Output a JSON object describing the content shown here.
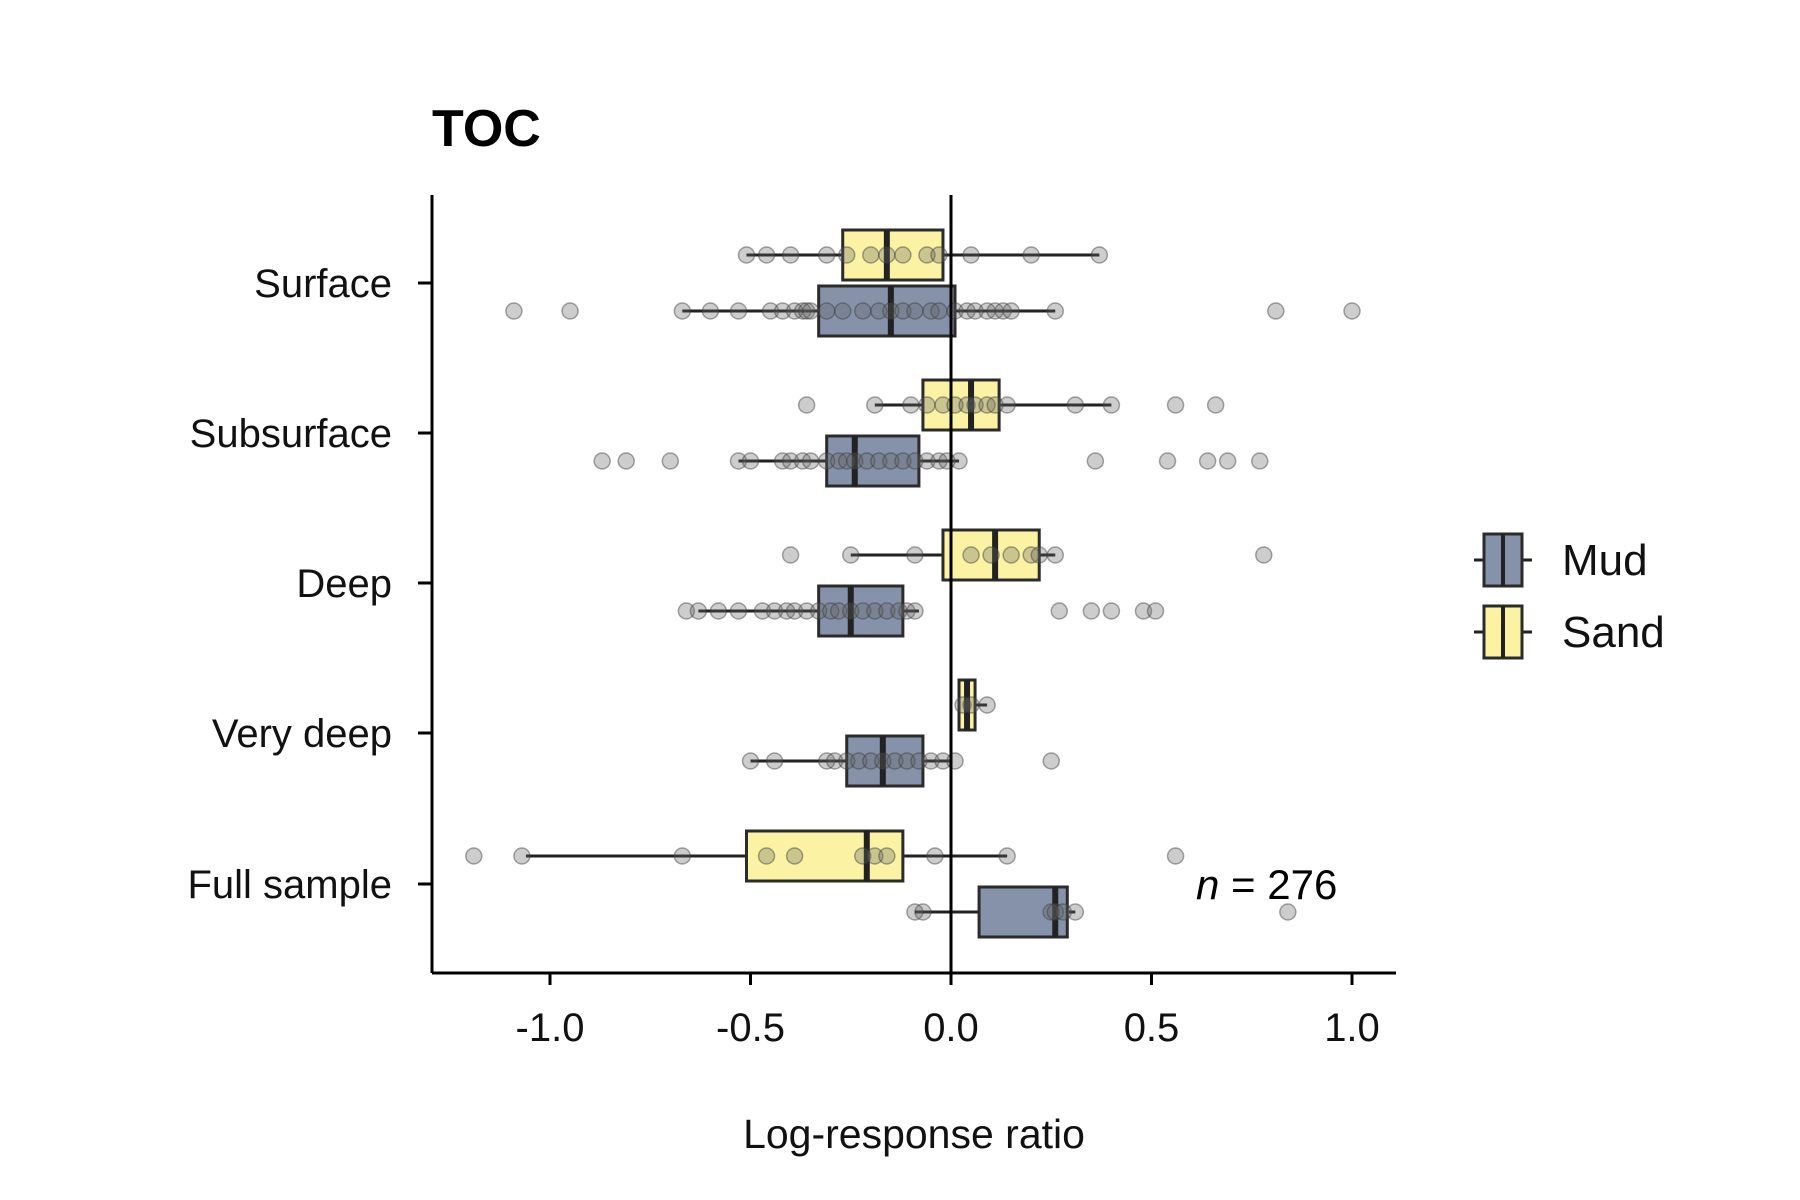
{
  "chart_data": {
    "type": "boxplot",
    "title": "TOC",
    "xlabel": "Log-response ratio",
    "ylabel": "",
    "xlim": [
      -1.3,
      1.11
    ],
    "xticks": [
      "-1.0",
      "-0.5",
      "0.0",
      "0.5",
      "1.0"
    ],
    "xtick_values": [
      -1.0,
      -0.5,
      0.0,
      0.5,
      1.0
    ],
    "categories": [
      "Surface",
      "Subsurface",
      "Deep",
      "Very deep",
      "Full sample"
    ],
    "reference_line_x": 0,
    "grid": false,
    "legend_position": "right",
    "annotation": {
      "italic": "n",
      "rest": " = 276"
    },
    "series": [
      {
        "name": "Mud",
        "color": "#8592AA",
        "boxes": [
          {
            "category": "Surface",
            "q1": -0.33,
            "median": -0.15,
            "q3": 0.01,
            "whisker_low": -0.67,
            "whisker_high": 0.26,
            "points": [
              -1.09,
              -0.95,
              -0.67,
              -0.6,
              -0.53,
              -0.45,
              -0.42,
              -0.39,
              -0.37,
              -0.36,
              -0.35,
              -0.31,
              -0.27,
              -0.22,
              -0.18,
              -0.15,
              -0.12,
              -0.09,
              -0.05,
              -0.03,
              0.01,
              0.04,
              0.06,
              0.09,
              0.11,
              0.13,
              0.15,
              0.26,
              0.81,
              1.0
            ]
          },
          {
            "category": "Subsurface",
            "q1": -0.31,
            "median": -0.24,
            "q3": -0.08,
            "whisker_low": -0.53,
            "whisker_high": 0.02,
            "points": [
              -0.87,
              -0.81,
              -0.7,
              -0.53,
              -0.5,
              -0.42,
              -0.4,
              -0.37,
              -0.35,
              -0.31,
              -0.28,
              -0.26,
              -0.24,
              -0.21,
              -0.18,
              -0.15,
              -0.12,
              -0.09,
              -0.06,
              -0.03,
              -0.01,
              0.02,
              0.36,
              0.54,
              0.64,
              0.69,
              0.77
            ]
          },
          {
            "category": "Deep",
            "q1": -0.33,
            "median": -0.25,
            "q3": -0.12,
            "whisker_low": -0.63,
            "whisker_high": -0.08,
            "points": [
              -0.66,
              -0.63,
              -0.58,
              -0.53,
              -0.47,
              -0.44,
              -0.41,
              -0.39,
              -0.36,
              -0.33,
              -0.3,
              -0.28,
              -0.25,
              -0.22,
              -0.19,
              -0.16,
              -0.13,
              -0.11,
              -0.09,
              0.27,
              0.35,
              0.4,
              0.48,
              0.51
            ]
          },
          {
            "category": "Very deep",
            "q1": -0.26,
            "median": -0.17,
            "q3": -0.07,
            "whisker_low": -0.5,
            "whisker_high": 0.0,
            "points": [
              -0.5,
              -0.44,
              -0.31,
              -0.29,
              -0.26,
              -0.23,
              -0.2,
              -0.17,
              -0.14,
              -0.11,
              -0.08,
              -0.05,
              -0.02,
              0.01,
              0.25
            ]
          },
          {
            "category": "Full sample",
            "q1": 0.07,
            "median": 0.26,
            "q3": 0.29,
            "whisker_low": -0.09,
            "whisker_high": 0.31,
            "points": [
              -0.09,
              -0.07,
              0.25,
              0.26,
              0.28,
              0.31,
              0.84
            ]
          }
        ]
      },
      {
        "name": "Sand",
        "color": "#FBF3A3",
        "boxes": [
          {
            "category": "Surface",
            "q1": -0.27,
            "median": -0.16,
            "q3": -0.02,
            "whisker_low": -0.51,
            "whisker_high": 0.37,
            "points": [
              -0.51,
              -0.46,
              -0.4,
              -0.31,
              -0.26,
              -0.2,
              -0.16,
              -0.12,
              -0.06,
              -0.03,
              0.05,
              0.2,
              0.37
            ]
          },
          {
            "category": "Subsurface",
            "q1": -0.07,
            "median": 0.05,
            "q3": 0.12,
            "whisker_low": -0.19,
            "whisker_high": 0.4,
            "points": [
              -0.36,
              -0.19,
              -0.1,
              -0.06,
              -0.02,
              0.01,
              0.04,
              0.06,
              0.09,
              0.11,
              0.14,
              0.31,
              0.4,
              0.56,
              0.66
            ]
          },
          {
            "category": "Deep",
            "q1": -0.02,
            "median": 0.11,
            "q3": 0.22,
            "whisker_low": -0.25,
            "whisker_high": 0.26,
            "points": [
              -0.4,
              -0.25,
              -0.09,
              0.05,
              0.1,
              0.15,
              0.2,
              0.22,
              0.26,
              0.78
            ]
          },
          {
            "category": "Very deep",
            "q1": 0.02,
            "median": 0.04,
            "q3": 0.06,
            "whisker_low": 0.02,
            "whisker_high": 0.09,
            "points": [
              0.03,
              0.05,
              0.09
            ]
          },
          {
            "category": "Full sample",
            "q1": -0.51,
            "median": -0.21,
            "q3": -0.12,
            "whisker_low": -1.06,
            "whisker_high": 0.14,
            "points": [
              -1.19,
              -1.07,
              -0.67,
              -0.46,
              -0.39,
              -0.22,
              -0.19,
              -0.16,
              -0.04,
              0.14,
              0.56
            ]
          }
        ]
      }
    ]
  }
}
